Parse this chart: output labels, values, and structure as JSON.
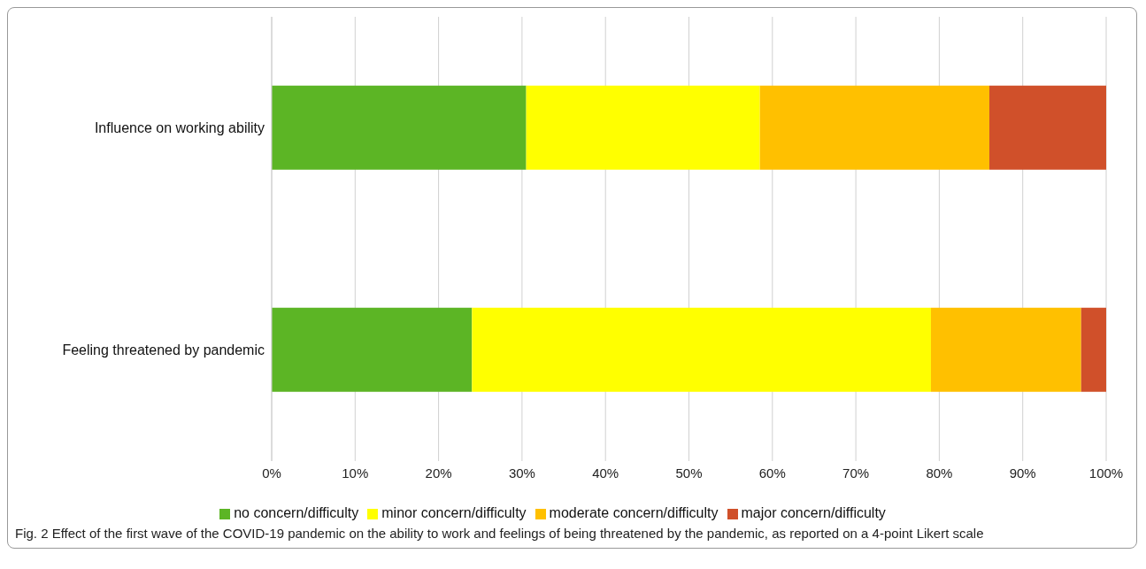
{
  "chart_data": {
    "type": "bar",
    "orientation": "horizontal",
    "stacked": true,
    "categories": [
      "Influence on working ability",
      "Feeling threatened by pandemic"
    ],
    "series": [
      {
        "name": "no concern/difficulty",
        "color": "#5cb525",
        "values": [
          30.5,
          24
        ]
      },
      {
        "name": "minor concern/difficulty",
        "color": "#ffff00",
        "values": [
          28,
          55
        ]
      },
      {
        "name": "moderate concern/difficulty",
        "color": "#ffc000",
        "values": [
          27.5,
          18
        ]
      },
      {
        "name": "major concern/difficulty",
        "color": "#d0502a",
        "values": [
          14,
          3
        ]
      }
    ],
    "xlim": [
      0,
      100
    ],
    "xticks": [
      {
        "value": 0,
        "label": "0%"
      },
      {
        "value": 10,
        "label": "10%"
      },
      {
        "value": 20,
        "label": "20%"
      },
      {
        "value": 30,
        "label": "30%"
      },
      {
        "value": 40,
        "label": "40%"
      },
      {
        "value": 50,
        "label": "50%"
      },
      {
        "value": 60,
        "label": "60%"
      },
      {
        "value": 70,
        "label": "70%"
      },
      {
        "value": 80,
        "label": "80%"
      },
      {
        "value": 90,
        "label": "90%"
      },
      {
        "value": 100,
        "label": "100%"
      }
    ],
    "grid": "x",
    "legend": "bottom",
    "annotations": [
      "Fig. 2  Effect of the first wave of the COVID-19 pandemic on the ability to work and feelings of being threatened by the pandemic, as reported on a 4-point Likert scale"
    ]
  }
}
